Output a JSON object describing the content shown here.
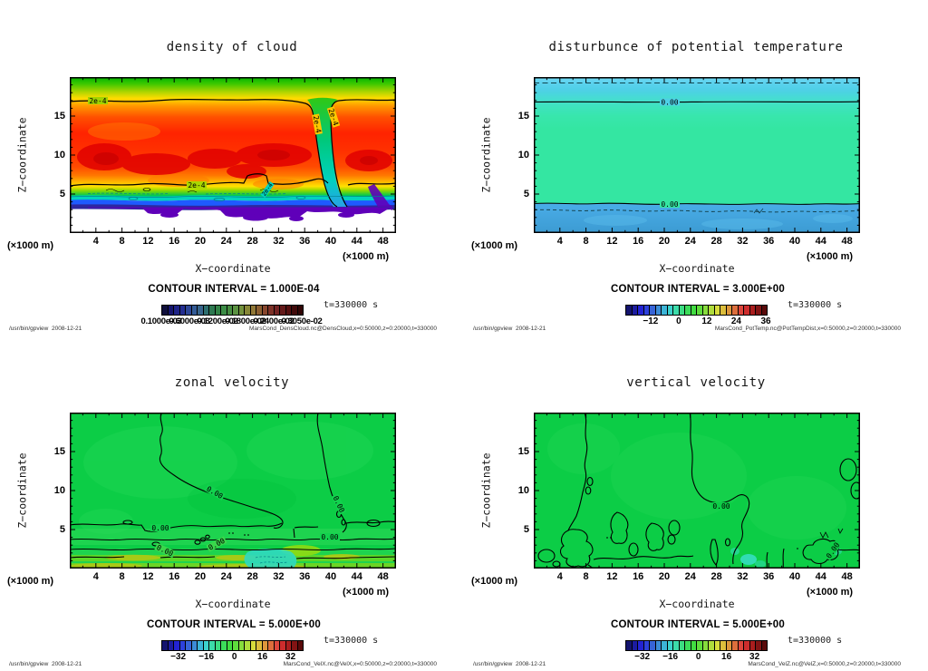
{
  "page": {
    "background": "#ffffff"
  },
  "chart_data": [
    {
      "id": "density-of-cloud",
      "type": "heatmap",
      "title": "density of cloud",
      "xlabel": "X−coordinate",
      "ylabel": "Z−coordinate",
      "x_unit": "(×1000 m)",
      "y_unit": "(×1000 m)",
      "xlim": [
        0,
        50
      ],
      "ylim": [
        0,
        20
      ],
      "x_ticks": [
        4,
        8,
        12,
        16,
        20,
        24,
        28,
        32,
        36,
        40,
        44,
        48
      ],
      "y_ticks": [
        5,
        10,
        15
      ],
      "x_minor_step": 2,
      "y_minor_step": 1,
      "grid": false,
      "contour_interval": "CONTOUR INTERVAL = 1.000E-04",
      "contour_label": "2e-4",
      "time_label": "t=330000 s",
      "footer_left": "/usr/bin/gpview  2008-12-21",
      "footer_right": "MarsCond_DensCloud.nc@DensCloud,x=0:50000,z=0:20000,t=330000",
      "field_colors": {
        "top_green": "#00b400",
        "yellow": "#ffdc00",
        "red_core": "#ff2300",
        "dark_red": "#e10000",
        "cyan_band": "#00d2be",
        "blue_band": "#1e5aff",
        "navy_band": "#2d28a0",
        "purple_band": "#5f00b9",
        "below_data": "#ffffff"
      },
      "colorbar": {
        "labels": [
          "0.1000e-03",
          "0.6000e-03",
          "0.1200e-02",
          "0.1800e-02",
          "0.2400e-02",
          "0.3050e-02"
        ],
        "label_centers_pct": [
          0,
          20,
          40,
          60,
          80,
          100
        ],
        "overlapped": true,
        "colors": [
          "#0f0f3c",
          "#16166e",
          "#1e2387",
          "#232d91",
          "#2d4696",
          "#325a96",
          "#37648c",
          "#2d6e6e",
          "#2d7850",
          "#328246",
          "#3c8c46",
          "#468c41",
          "#5a9141",
          "#73913c",
          "#878737",
          "#917837",
          "#8c5f32",
          "#87462d",
          "#7d3228",
          "#732323",
          "#641919",
          "#550f0f",
          "#410a0a",
          "#320505"
        ]
      }
    },
    {
      "id": "potential-temperature-disturbance",
      "type": "heatmap",
      "title": "disturbunce of potential temperature",
      "xlabel": "X−coordinate",
      "ylabel": "Z−coordinate",
      "x_unit": "(×1000 m)",
      "y_unit": "(×1000 m)",
      "xlim": [
        0,
        50
      ],
      "ylim": [
        0,
        20
      ],
      "x_ticks": [
        4,
        8,
        12,
        16,
        20,
        24,
        28,
        32,
        36,
        40,
        44,
        48
      ],
      "y_ticks": [
        5,
        10,
        15
      ],
      "x_minor_step": 2,
      "y_minor_step": 1,
      "grid": false,
      "contour_interval": "CONTOUR INTERVAL = 3.000E+00",
      "contour_label": "0.00",
      "time_label": "t=330000 s",
      "footer_left": "/usr/bin/gpview  2008-12-21",
      "footer_right": "MarsCond_PotTemp.nc@PotTempDist,x=0:50000,z=0:20000,t=330000",
      "field_colors": {
        "top_band": "#73d9f4",
        "upper_cyan": "#4ed0e6",
        "main_mint": "#34e6a2",
        "bottom_blue": "#4aade8"
      },
      "colorbar": {
        "labels": [
          "−12",
          "0",
          "12",
          "24",
          "36"
        ],
        "label_centers_pct": [
          18,
          38,
          58,
          79,
          100
        ],
        "overlapped": false,
        "colors": [
          "#14146e",
          "#1c1ca0",
          "#2323d2",
          "#2d41dc",
          "#3764d7",
          "#3c8cd7",
          "#3cb4d7",
          "#3cd2cd",
          "#3cdcaa",
          "#3cdc82",
          "#3cdc5a",
          "#41dc41",
          "#5fdc3c",
          "#87dc3c",
          "#afdc3c",
          "#d7dc3c",
          "#dcbe3c",
          "#dc963c",
          "#dc6e3c",
          "#dc463c",
          "#cd2d2d",
          "#aa1e1e",
          "#821414",
          "#5a0a0a"
        ]
      }
    },
    {
      "id": "zonal-velocity",
      "type": "heatmap",
      "title": "zonal velocity",
      "xlabel": "X−coordinate",
      "ylabel": "Z−coordinate",
      "x_unit": "(×1000 m)",
      "y_unit": "(×1000 m)",
      "xlim": [
        0,
        50
      ],
      "ylim": [
        0,
        20
      ],
      "x_ticks": [
        4,
        8,
        12,
        16,
        20,
        24,
        28,
        32,
        36,
        40,
        44,
        48
      ],
      "y_ticks": [
        5,
        10,
        15
      ],
      "x_minor_step": 2,
      "y_minor_step": 1,
      "grid": false,
      "contour_interval": "CONTOUR INTERVAL = 5.000E+00",
      "contour_label": "0.00",
      "time_label": "t=330000 s",
      "footer_left": "/usr/bin/gpview  2008-12-21",
      "footer_right": "MarsCond_VelX.nc@VelX,x=0:50000,z=0:20000,t=330000",
      "field_colors": {
        "base_green": "#0ccd46",
        "light_green": "#1ed553",
        "yellow_green": "#8cd414",
        "olive": "#b4c814",
        "cyan_patch": "#2fd9c0"
      },
      "colorbar": {
        "labels": [
          "−32",
          "−16",
          "0",
          "16",
          "32"
        ],
        "label_centers_pct": [
          12,
          32,
          52,
          72,
          92
        ],
        "overlapped": false,
        "colors": [
          "#14146e",
          "#1c1ca0",
          "#2323d2",
          "#2d41dc",
          "#3764d7",
          "#3c8cd7",
          "#3cb4d7",
          "#3cd2cd",
          "#3cdcaa",
          "#3cdc82",
          "#3cdc5a",
          "#41dc41",
          "#5fdc3c",
          "#87dc3c",
          "#afdc3c",
          "#d7dc3c",
          "#dcbe3c",
          "#dc963c",
          "#dc6e3c",
          "#dc463c",
          "#cd2d2d",
          "#aa1e1e",
          "#821414",
          "#5a0a0a"
        ]
      }
    },
    {
      "id": "vertical-velocity",
      "type": "heatmap",
      "title": "vertical velocity",
      "xlabel": "X−coordinate",
      "ylabel": "Z−coordinate",
      "x_unit": "(×1000 m)",
      "y_unit": "(×1000 m)",
      "xlim": [
        0,
        50
      ],
      "ylim": [
        0,
        20
      ],
      "x_ticks": [
        4,
        8,
        12,
        16,
        20,
        24,
        28,
        32,
        36,
        40,
        44,
        48
      ],
      "y_ticks": [
        5,
        10,
        15
      ],
      "x_minor_step": 2,
      "y_minor_step": 1,
      "grid": false,
      "contour_interval": "CONTOUR INTERVAL = 5.000E+00",
      "contour_label": "0.00",
      "time_label": "t=330000 s",
      "footer_left": "/usr/bin/gpview  2008-12-21",
      "footer_right": "MarsCond_VelZ.nc@VelZ,x=0:50000,z=0:20000,t=330000",
      "field_colors": {
        "base_green": "#0ccd46",
        "light_green": "#1ed553",
        "cyan_spots": "#35dec0"
      },
      "colorbar": {
        "labels": [
          "−32",
          "−16",
          "0",
          "16",
          "32"
        ],
        "label_centers_pct": [
          12,
          32,
          52,
          72,
          92
        ],
        "overlapped": false,
        "colors": [
          "#14146e",
          "#1c1ca0",
          "#2323d2",
          "#2d41dc",
          "#3764d7",
          "#3c8cd7",
          "#3cb4d7",
          "#3cd2cd",
          "#3cdcaa",
          "#3cdc82",
          "#3cdc5a",
          "#41dc41",
          "#5fdc3c",
          "#87dc3c",
          "#afdc3c",
          "#d7dc3c",
          "#dcbe3c",
          "#dc963c",
          "#dc6e3c",
          "#dc463c",
          "#cd2d2d",
          "#aa1e1e",
          "#821414",
          "#5a0a0a"
        ]
      }
    }
  ]
}
